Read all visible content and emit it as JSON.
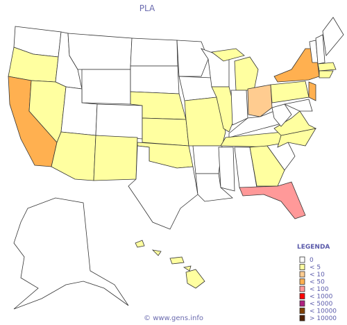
{
  "title": "PLA",
  "legend": {
    "title": "LEGENDA",
    "items": [
      {
        "label": "0",
        "color": "#ffffff"
      },
      {
        "label": "< 5",
        "color": "#ffffa0"
      },
      {
        "label": "< 10",
        "color": "#ffcc90"
      },
      {
        "label": "< 50",
        "color": "#ffb050"
      },
      {
        "label": "< 100",
        "color": "#ff9999"
      },
      {
        "label": "< 1000",
        "color": "#ff0000"
      },
      {
        "label": "< 5000",
        "color": "#b02080"
      },
      {
        "label": "< 10000",
        "color": "#804000"
      },
      {
        "label": "> 10000",
        "color": "#502000"
      }
    ]
  },
  "footer": "© www.gens.info"
}
